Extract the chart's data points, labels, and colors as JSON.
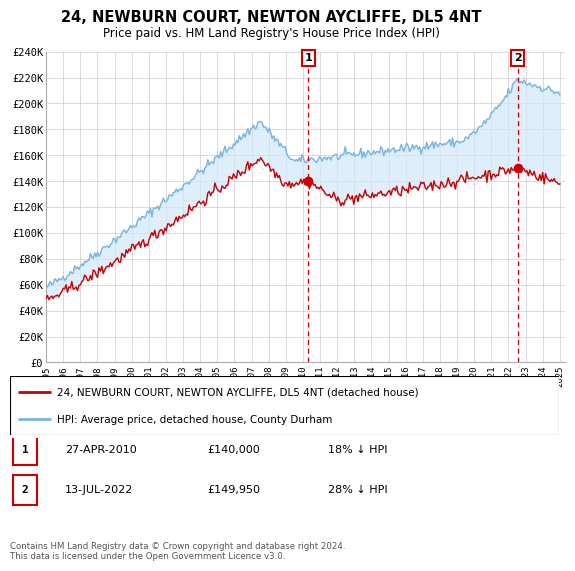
{
  "title": "24, NEWBURN COURT, NEWTON AYCLIFFE, DL5 4NT",
  "subtitle": "Price paid vs. HM Land Registry's House Price Index (HPI)",
  "ylim": [
    0,
    240000
  ],
  "yticks": [
    0,
    20000,
    40000,
    60000,
    80000,
    100000,
    120000,
    140000,
    160000,
    180000,
    200000,
    220000,
    240000
  ],
  "ytick_labels": [
    "£0",
    "£20K",
    "£40K",
    "£60K",
    "£80K",
    "£100K",
    "£120K",
    "£140K",
    "£160K",
    "£180K",
    "£200K",
    "£220K",
    "£240K"
  ],
  "hpi_color": "#7ab4e0",
  "hpi_fill_color": "#d0e8f8",
  "price_color": "#cc0000",
  "marker1_date": 2010.32,
  "marker1_price": 140000,
  "marker2_date": 2022.54,
  "marker2_price": 149950,
  "legend_line1": "24, NEWBURN COURT, NEWTON AYCLIFFE, DL5 4NT (detached house)",
  "legend_line2": "HPI: Average price, detached house, County Durham",
  "table_row1": [
    "1",
    "27-APR-2010",
    "£140,000",
    "18% ↓ HPI"
  ],
  "table_row2": [
    "2",
    "13-JUL-2022",
    "£149,950",
    "28% ↓ HPI"
  ],
  "footer": "Contains HM Land Registry data © Crown copyright and database right 2024.\nThis data is licensed under the Open Government Licence v3.0.",
  "background_color": "#ffffff",
  "grid_color": "#cccccc"
}
